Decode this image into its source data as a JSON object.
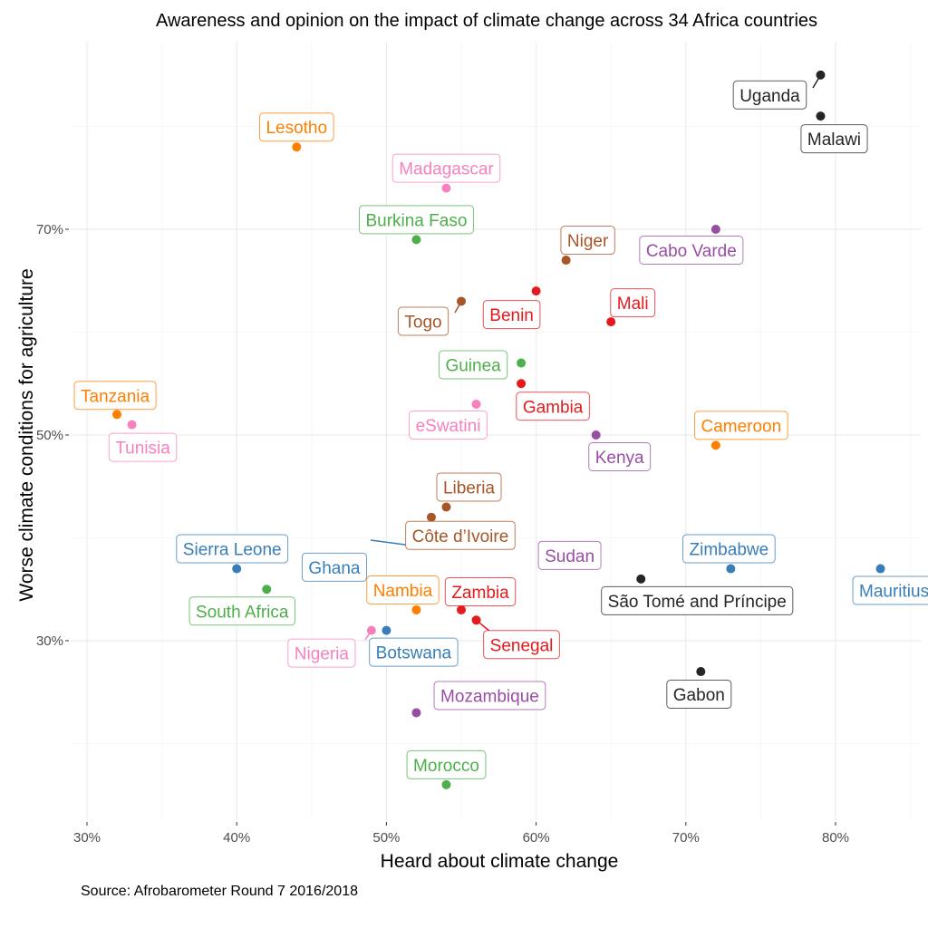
{
  "chart_data": {
    "type": "scatter",
    "title": "Awareness and opinion on the impact of climate change across 34 Africa countries",
    "xlabel": "Heard about climate change",
    "ylabel": "Worse climate conditions for agriculture",
    "caption": "Source: Afrobarometer Round 7 2016/2018",
    "xlim": [
      29.9,
      85
    ],
    "ylim": [
      13,
      89
    ],
    "x_ticks": [
      30,
      40,
      50,
      60,
      70,
      80
    ],
    "x_tick_labels": [
      "30%",
      "40%",
      "50%",
      "60%",
      "70%",
      "80%"
    ],
    "y_ticks": [
      30,
      50,
      70
    ],
    "y_tick_labels": [
      "30%",
      "50%",
      "70%"
    ],
    "grid": true,
    "legend": "none",
    "colors": {
      "black": "#252525",
      "orange": "#ff7f00",
      "pink": "#f781bf",
      "green": "#4daf4a",
      "purple": "#984ea3",
      "brown": "#a65628",
      "red": "#e41a1c",
      "blue": "#377eb8"
    },
    "points": [
      {
        "country": "Uganda",
        "x": 79,
        "y": 85,
        "color": "black"
      },
      {
        "country": "Malawi",
        "x": 79,
        "y": 81,
        "color": "black"
      },
      {
        "country": "Lesotho",
        "x": 44,
        "y": 78,
        "color": "orange"
      },
      {
        "country": "Madagascar",
        "x": 54,
        "y": 74,
        "color": "pink"
      },
      {
        "country": "Burkina Faso",
        "x": 52,
        "y": 69,
        "color": "green"
      },
      {
        "country": "Cabo Varde",
        "x": 72,
        "y": 70,
        "color": "purple"
      },
      {
        "country": "Niger",
        "x": 62,
        "y": 67,
        "color": "brown"
      },
      {
        "country": "Togo",
        "x": 55,
        "y": 63,
        "color": "brown"
      },
      {
        "country": "Benin",
        "x": 60,
        "y": 64,
        "color": "red"
      },
      {
        "country": "Mali",
        "x": 65,
        "y": 61,
        "color": "red"
      },
      {
        "country": "Guinea",
        "x": 59,
        "y": 57,
        "color": "green"
      },
      {
        "country": "Gambia",
        "x": 59,
        "y": 55,
        "color": "red"
      },
      {
        "country": "Tanzania",
        "x": 32,
        "y": 52,
        "color": "orange"
      },
      {
        "country": "Tunisia",
        "x": 33,
        "y": 51,
        "color": "pink"
      },
      {
        "country": "eSwatini",
        "x": 56,
        "y": 53,
        "color": "pink"
      },
      {
        "country": "Kenya",
        "x": 64,
        "y": 50,
        "color": "purple"
      },
      {
        "country": "Cameroon",
        "x": 72,
        "y": 49,
        "color": "orange"
      },
      {
        "country": "Liberia",
        "x": 54,
        "y": 43,
        "color": "brown"
      },
      {
        "country": "Côte d’Ivoire",
        "x": 53,
        "y": 42,
        "color": "brown"
      },
      {
        "country": "Ghana",
        "x": 53,
        "y": 39,
        "color": "blue"
      },
      {
        "country": "Sudan",
        "x": 58,
        "y": 39,
        "color": "purple"
      },
      {
        "country": "Sierra Leone",
        "x": 40,
        "y": 37,
        "color": "blue"
      },
      {
        "country": "Zimbabwe",
        "x": 73,
        "y": 37,
        "color": "blue"
      },
      {
        "country": "Mauritius",
        "x": 83,
        "y": 37,
        "color": "blue"
      },
      {
        "country": "São Tomé and Príncipe",
        "x": 67,
        "y": 36,
        "color": "black"
      },
      {
        "country": "South Africa",
        "x": 42,
        "y": 35,
        "color": "green"
      },
      {
        "country": "Nambia",
        "x": 52,
        "y": 33,
        "color": "orange"
      },
      {
        "country": "Zambia",
        "x": 55,
        "y": 33,
        "color": "red"
      },
      {
        "country": "Senegal",
        "x": 56,
        "y": 32,
        "color": "red"
      },
      {
        "country": "Nigeria",
        "x": 49,
        "y": 31,
        "color": "pink"
      },
      {
        "country": "Botswana",
        "x": 50,
        "y": 31,
        "color": "blue"
      },
      {
        "country": "Gabon",
        "x": 71,
        "y": 27,
        "color": "black"
      },
      {
        "country": "Mozambique",
        "x": 52,
        "y": 23,
        "color": "purple"
      },
      {
        "country": "Morocco",
        "x": 54,
        "y": 16,
        "color": "green"
      }
    ]
  }
}
